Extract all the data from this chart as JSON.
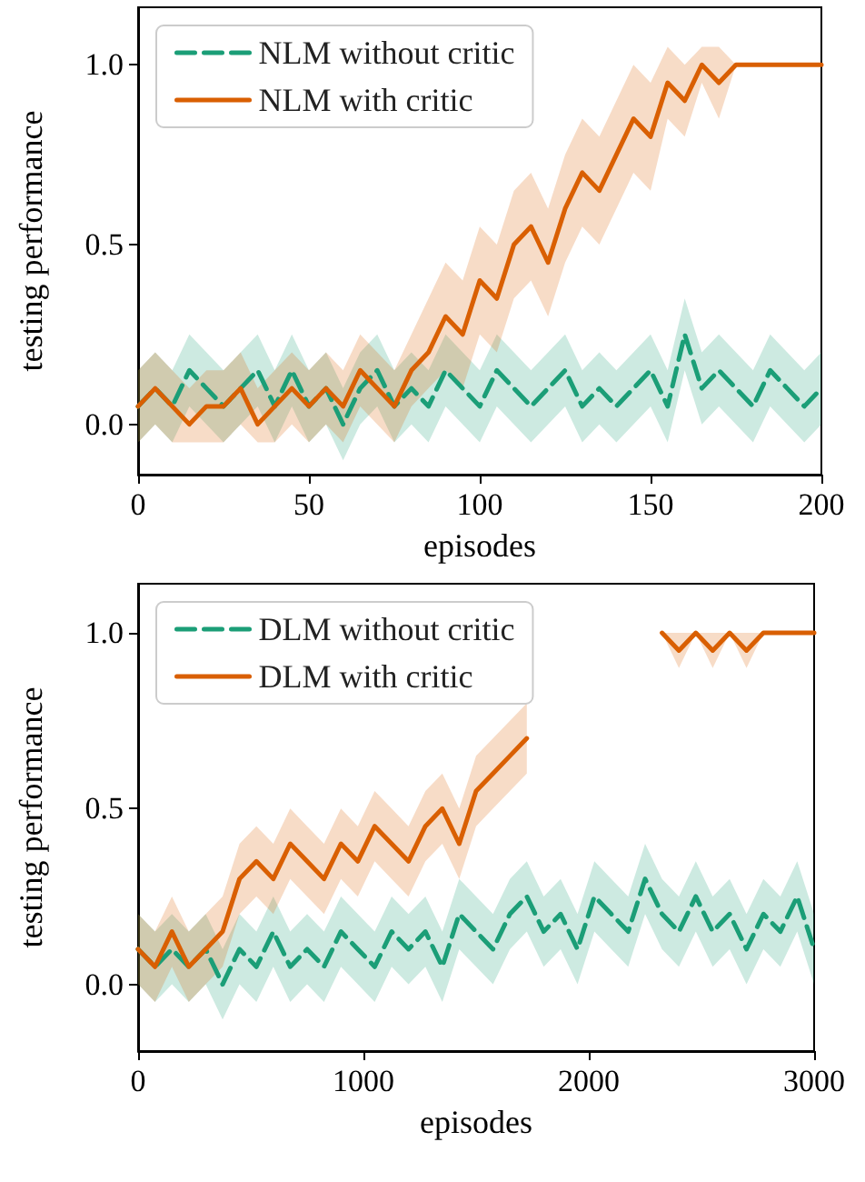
{
  "chart_data": [
    {
      "type": "line",
      "xlabel": "episodes",
      "ylabel": "testing performance",
      "xlim": [
        0,
        200
      ],
      "xticks": [
        0,
        50,
        100,
        150,
        200
      ],
      "ylim": [
        -0.14,
        1.16
      ],
      "yticks": [
        {
          "value": 0,
          "label": "0.0"
        },
        {
          "value": 0.5,
          "label": "0.5"
        },
        {
          "value": 1,
          "label": "1.0"
        }
      ],
      "legend": "top left",
      "grid": false,
      "marker": "none",
      "x": [
        0,
        5,
        10,
        15,
        20,
        25,
        30,
        35,
        40,
        45,
        50,
        55,
        60,
        65,
        70,
        75,
        80,
        85,
        90,
        95,
        100,
        105,
        110,
        115,
        120,
        125,
        130,
        135,
        140,
        145,
        150,
        155,
        160,
        165,
        170,
        175,
        180,
        185,
        190,
        195,
        200
      ],
      "series": [
        {
          "name": "NLM without critic",
          "color": "#1b9e77",
          "line_style": "dashed",
          "values": [
            0.05,
            0.1,
            0.05,
            0.15,
            0.1,
            0.05,
            0.1,
            0.15,
            0.05,
            0.15,
            0.05,
            0.1,
            0.0,
            0.1,
            0.15,
            0.05,
            0.1,
            0.05,
            0.15,
            0.1,
            0.05,
            0.15,
            0.1,
            0.05,
            0.1,
            0.15,
            0.05,
            0.1,
            0.05,
            0.1,
            0.15,
            0.05,
            0.25,
            0.1,
            0.15,
            0.1,
            0.05,
            0.15,
            0.1,
            0.05,
            0.1
          ],
          "lower": [
            -0.05,
            0.0,
            -0.05,
            0.05,
            0.0,
            -0.05,
            0.0,
            0.05,
            -0.05,
            0.05,
            -0.05,
            0.0,
            -0.1,
            0.0,
            0.05,
            -0.05,
            0.0,
            -0.05,
            0.05,
            0.0,
            -0.05,
            0.05,
            0.0,
            -0.05,
            0.0,
            0.05,
            -0.05,
            0.0,
            -0.05,
            0.0,
            0.05,
            -0.05,
            0.15,
            0.0,
            0.05,
            0.0,
            -0.05,
            0.05,
            0.0,
            -0.05,
            0.0
          ],
          "upper": [
            0.15,
            0.2,
            0.15,
            0.25,
            0.2,
            0.15,
            0.2,
            0.25,
            0.15,
            0.25,
            0.15,
            0.2,
            0.1,
            0.2,
            0.25,
            0.15,
            0.2,
            0.15,
            0.25,
            0.2,
            0.15,
            0.25,
            0.2,
            0.15,
            0.2,
            0.25,
            0.15,
            0.2,
            0.15,
            0.2,
            0.25,
            0.15,
            0.35,
            0.2,
            0.25,
            0.2,
            0.15,
            0.25,
            0.2,
            0.15,
            0.2
          ]
        },
        {
          "name": "NLM with critic",
          "color": "#d95f02",
          "line_style": "solid",
          "values": [
            0.05,
            0.1,
            0.05,
            0.0,
            0.05,
            0.05,
            0.1,
            0.0,
            0.05,
            0.1,
            0.05,
            0.1,
            0.05,
            0.15,
            0.1,
            0.05,
            0.15,
            0.2,
            0.3,
            0.25,
            0.4,
            0.35,
            0.5,
            0.55,
            0.45,
            0.6,
            0.7,
            0.65,
            0.75,
            0.85,
            0.8,
            0.95,
            0.9,
            1.0,
            0.95,
            1.0,
            1.0,
            1.0,
            1.0,
            1.0,
            1.0
          ],
          "lower": [
            -0.05,
            0.0,
            -0.05,
            -0.05,
            -0.05,
            -0.05,
            0.0,
            -0.05,
            -0.05,
            0.0,
            -0.05,
            0.0,
            -0.05,
            0.05,
            0.0,
            -0.05,
            0.05,
            0.1,
            0.15,
            0.1,
            0.25,
            0.2,
            0.35,
            0.4,
            0.3,
            0.45,
            0.55,
            0.5,
            0.6,
            0.7,
            0.65,
            0.85,
            0.8,
            0.95,
            0.85,
            1.0,
            1.0,
            1.0,
            1.0,
            1.0,
            1.0
          ],
          "upper": [
            0.15,
            0.2,
            0.15,
            0.1,
            0.15,
            0.15,
            0.2,
            0.1,
            0.15,
            0.2,
            0.15,
            0.2,
            0.15,
            0.25,
            0.2,
            0.15,
            0.25,
            0.35,
            0.45,
            0.4,
            0.55,
            0.5,
            0.65,
            0.7,
            0.6,
            0.75,
            0.85,
            0.8,
            0.9,
            1.0,
            0.95,
            1.05,
            1.0,
            1.05,
            1.05,
            1.0,
            1.0,
            1.0,
            1.0,
            1.0,
            1.0
          ]
        }
      ]
    },
    {
      "type": "line",
      "xlabel": "episodes",
      "ylabel": "testing performance",
      "xlim": [
        0,
        3000
      ],
      "xticks": [
        0,
        1000,
        2000,
        3000
      ],
      "ylim": [
        -0.19,
        1.14
      ],
      "yticks": [
        {
          "value": 0,
          "label": "0.0"
        },
        {
          "value": 0.5,
          "label": "0.5"
        },
        {
          "value": 1,
          "label": "1.0"
        }
      ],
      "legend": "top left",
      "grid": false,
      "marker": "none",
      "x": [
        0,
        75,
        150,
        225,
        300,
        375,
        450,
        525,
        600,
        675,
        750,
        825,
        900,
        975,
        1050,
        1125,
        1200,
        1275,
        1350,
        1425,
        1500,
        1575,
        1650,
        1725,
        1800,
        1875,
        1950,
        2025,
        2100,
        2175,
        2250,
        2325,
        2400,
        2475,
        2550,
        2625,
        2700,
        2775,
        2850,
        2925,
        3000
      ],
      "series": [
        {
          "name": "DLM without critic",
          "color": "#1b9e77",
          "line_style": "dashed",
          "values": [
            0.1,
            0.05,
            0.1,
            0.05,
            0.1,
            0.0,
            0.1,
            0.05,
            0.15,
            0.05,
            0.1,
            0.05,
            0.15,
            0.1,
            0.05,
            0.15,
            0.1,
            0.15,
            0.05,
            0.2,
            0.15,
            0.1,
            0.2,
            0.25,
            0.15,
            0.2,
            0.1,
            0.25,
            0.2,
            0.15,
            0.3,
            0.2,
            0.15,
            0.25,
            0.15,
            0.2,
            0.1,
            0.2,
            0.15,
            0.25,
            0.1
          ],
          "lower": [
            0.0,
            -0.05,
            0.0,
            -0.05,
            0.0,
            -0.1,
            0.0,
            -0.05,
            0.05,
            -0.05,
            0.0,
            -0.05,
            0.05,
            0.0,
            -0.05,
            0.05,
            0.0,
            0.05,
            -0.05,
            0.1,
            0.05,
            0.0,
            0.1,
            0.15,
            0.05,
            0.1,
            0.0,
            0.15,
            0.1,
            0.05,
            0.2,
            0.1,
            0.05,
            0.15,
            0.05,
            0.1,
            0.0,
            0.1,
            0.05,
            0.15,
            0.0
          ],
          "upper": [
            0.2,
            0.15,
            0.2,
            0.15,
            0.2,
            0.1,
            0.2,
            0.15,
            0.25,
            0.15,
            0.2,
            0.15,
            0.25,
            0.2,
            0.15,
            0.25,
            0.2,
            0.25,
            0.15,
            0.3,
            0.25,
            0.2,
            0.3,
            0.35,
            0.25,
            0.3,
            0.2,
            0.35,
            0.3,
            0.25,
            0.4,
            0.3,
            0.25,
            0.35,
            0.25,
            0.3,
            0.2,
            0.3,
            0.25,
            0.35,
            0.2
          ]
        },
        {
          "name": "DLM with critic",
          "color": "#d95f02",
          "line_style": "solid",
          "values": [
            0.1,
            0.05,
            0.15,
            0.05,
            0.1,
            0.15,
            0.3,
            0.35,
            0.3,
            0.4,
            0.35,
            0.3,
            0.4,
            0.35,
            0.45,
            0.4,
            0.35,
            0.45,
            0.5,
            0.4,
            0.55,
            0.6,
            0.65,
            0.7,
            null,
            null,
            null,
            null,
            null,
            null,
            null,
            1.0,
            0.95,
            1.0,
            0.95,
            1.0,
            0.95,
            1.0,
            1.0,
            1.0,
            1.0
          ],
          "lower": [
            0.0,
            -0.05,
            0.05,
            -0.05,
            0.0,
            0.05,
            0.2,
            0.25,
            0.2,
            0.3,
            0.25,
            0.2,
            0.3,
            0.25,
            0.35,
            0.3,
            0.25,
            0.35,
            0.4,
            0.3,
            0.45,
            0.5,
            0.55,
            0.6,
            null,
            null,
            null,
            null,
            null,
            null,
            null,
            1.0,
            0.9,
            1.0,
            0.9,
            1.0,
            0.9,
            1.0,
            1.0,
            1.0,
            1.0
          ],
          "upper": [
            0.2,
            0.15,
            0.25,
            0.15,
            0.2,
            0.25,
            0.4,
            0.45,
            0.4,
            0.5,
            0.45,
            0.4,
            0.5,
            0.45,
            0.55,
            0.5,
            0.45,
            0.55,
            0.6,
            0.5,
            0.65,
            0.7,
            0.75,
            0.8,
            null,
            null,
            null,
            null,
            null,
            null,
            null,
            1.0,
            1.0,
            1.0,
            1.0,
            1.0,
            1.0,
            1.0,
            1.0,
            1.0,
            1.0
          ]
        }
      ]
    }
  ]
}
